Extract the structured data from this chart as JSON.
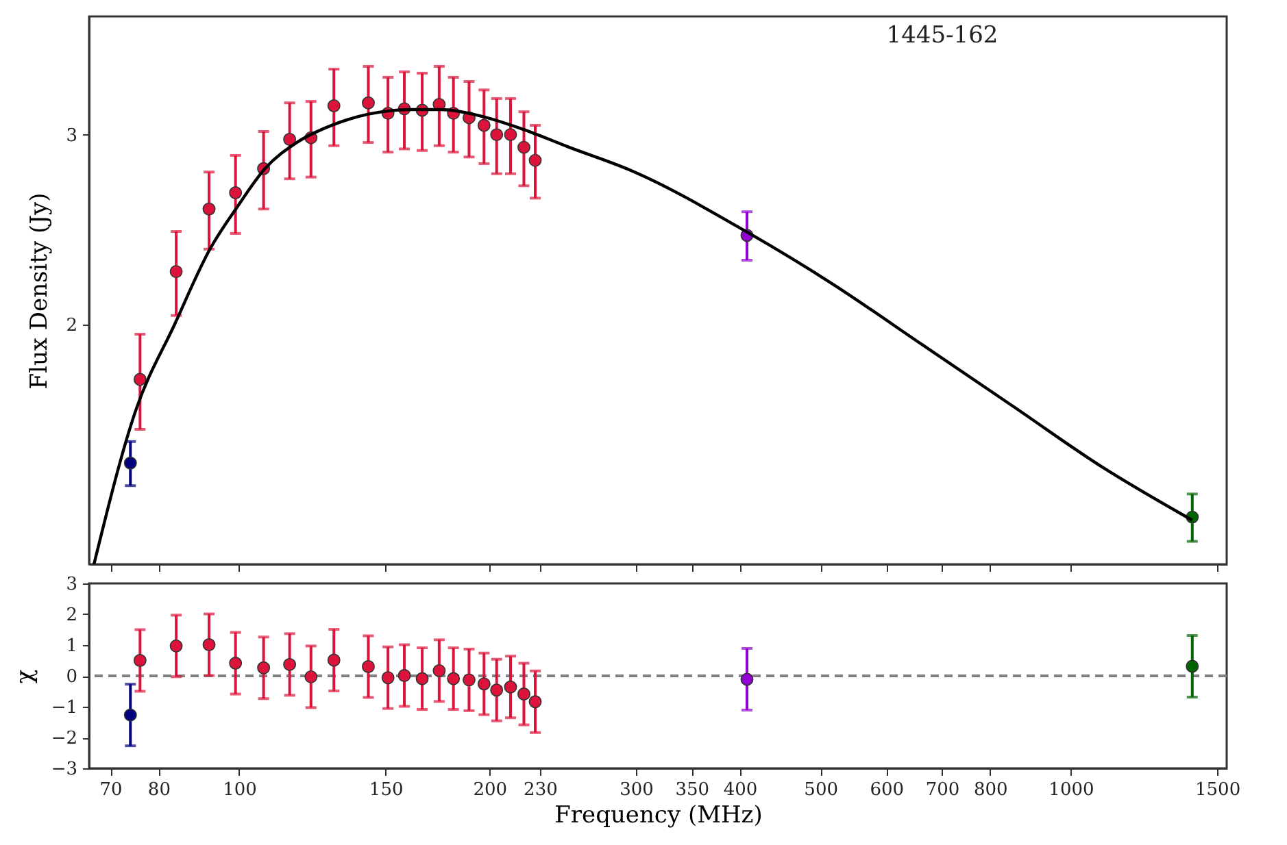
{
  "chart_data": [
    {
      "type": "scatter",
      "ylabel": "Flux Density (Jy)",
      "annotations": [
        "1445-162"
      ],
      "log": "xy",
      "xlim": [
        66,
        1540
      ],
      "ylim": [
        1.2,
        3.86
      ],
      "xticks": [
        70,
        80,
        100,
        150,
        200,
        230,
        300,
        350,
        400,
        500,
        600,
        700,
        800,
        1000,
        1500
      ],
      "yticks": [
        2,
        3
      ],
      "tick_labels": "y",
      "grid": false,
      "marker": "circle",
      "series": [
        {
          "color": "#000080",
          "x": [
            74
          ],
          "values": [
            1.489
          ],
          "errors": [
            0.07
          ]
        },
        {
          "color": "#dc143c",
          "x": [
            76,
            84,
            92,
            99,
            107,
            115,
            122,
            130,
            143,
            151,
            158,
            166,
            174,
            181,
            189,
            197,
            204,
            212,
            220,
            227
          ],
          "values": [
            1.78,
            2.24,
            2.56,
            2.65,
            2.79,
            2.97,
            2.98,
            3.19,
            3.21,
            3.14,
            3.17,
            3.16,
            3.2,
            3.14,
            3.11,
            3.06,
            3.0,
            3.0,
            2.92,
            2.84
          ],
          "errors": [
            0.18,
            0.2,
            0.21,
            0.22,
            0.23,
            0.24,
            0.24,
            0.26,
            0.26,
            0.25,
            0.26,
            0.26,
            0.27,
            0.25,
            0.25,
            0.24,
            0.24,
            0.24,
            0.23,
            0.22
          ]
        },
        {
          "color": "#9400d3",
          "x": [
            408
          ],
          "values": [
            2.42
          ],
          "errors": [
            0.125
          ]
        },
        {
          "color": "#006400",
          "x": [
            1400
          ],
          "values": [
            1.327
          ],
          "errors": [
            0.067
          ]
        },
        {
          "type": "line",
          "color": "#000000",
          "line_style": "solid",
          "marker": "none",
          "x": [
            66.9,
            75.1,
            83.6,
            92.4,
            99.6,
            107.4,
            117.3,
            129.6,
            143.4,
            160.5,
            175.2,
            193.6,
            219.5,
            248.8,
            296.9,
            408.8,
            515,
            662,
            851,
            1093,
            1400
          ],
          "values": [
            1.2,
            1.666,
            2.0,
            2.356,
            2.575,
            2.79,
            2.95,
            3.063,
            3.135,
            3.165,
            3.165,
            3.126,
            3.034,
            2.922,
            2.776,
            2.435,
            2.186,
            1.918,
            1.682,
            1.475,
            1.318
          ]
        }
      ]
    },
    {
      "type": "scatter",
      "xlabel": "Frequency (MHz)",
      "ylabel": "χ",
      "log": "x",
      "xlim": [
        66,
        1540
      ],
      "ylim": [
        -3,
        3
      ],
      "xticks": [
        70,
        80,
        100,
        150,
        200,
        230,
        300,
        350,
        400,
        500,
        600,
        700,
        800,
        1000,
        1500
      ],
      "yticks": [
        -3,
        -2,
        -1,
        0,
        1,
        2,
        3
      ],
      "grid": false,
      "marker": "circle",
      "ref_lines": [
        {
          "axis": "y",
          "value": 0,
          "color": "#808080",
          "line_style": "dashed"
        }
      ],
      "series": [
        {
          "color": "#000080",
          "x": [
            74
          ],
          "values": [
            -1.27
          ],
          "errors": [
            1
          ]
        },
        {
          "color": "#dc143c",
          "x": [
            76,
            84,
            92,
            99,
            107,
            115,
            122,
            130,
            143,
            151,
            158,
            166,
            174,
            181,
            189,
            197,
            204,
            212,
            220,
            227
          ],
          "values": [
            0.5,
            0.97,
            1.01,
            0.41,
            0.26,
            0.37,
            -0.03,
            0.51,
            0.3,
            -0.06,
            0.01,
            -0.09,
            0.17,
            -0.09,
            -0.13,
            -0.26,
            -0.46,
            -0.36,
            -0.59,
            -0.84
          ],
          "errors": [
            1,
            1,
            1,
            1,
            1,
            1,
            1,
            1,
            1,
            1,
            1,
            1,
            1,
            1,
            1,
            1,
            1,
            1,
            1,
            1
          ]
        },
        {
          "color": "#9400d3",
          "x": [
            408
          ],
          "values": [
            -0.11
          ],
          "errors": [
            1
          ]
        },
        {
          "color": "#006400",
          "x": [
            1400
          ],
          "values": [
            0.31
          ],
          "errors": [
            1
          ]
        }
      ]
    }
  ]
}
